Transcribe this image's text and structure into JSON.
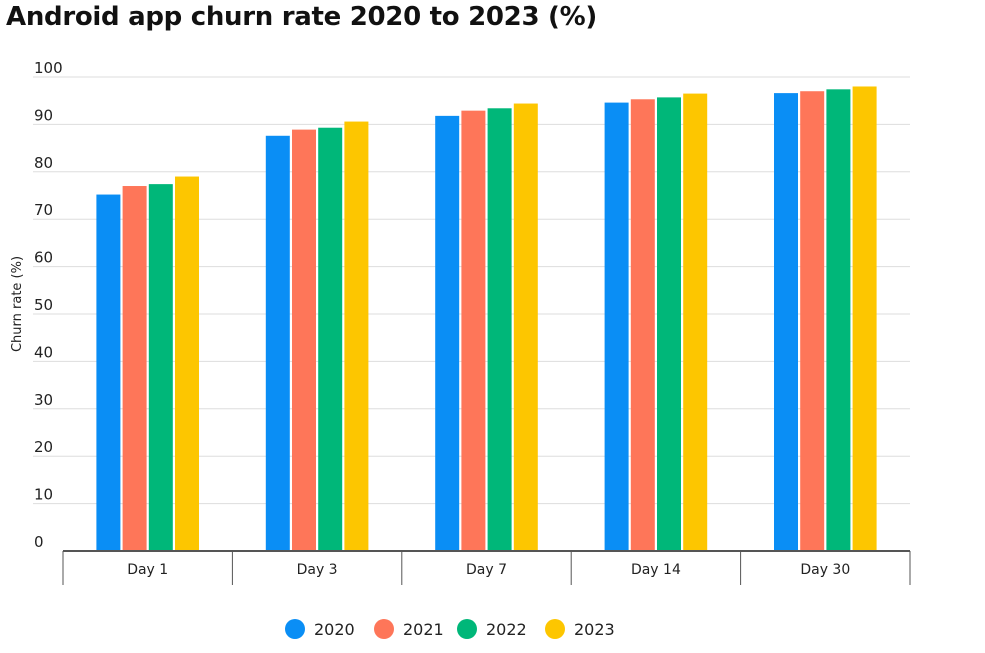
{
  "chart_data": {
    "type": "bar",
    "title": "Android app churn rate 2020 to 2023 (%)",
    "xlabel": "",
    "ylabel": "Churn rate (%)",
    "ylim": [
      0,
      100
    ],
    "yticks": [
      0,
      10,
      20,
      30,
      40,
      50,
      60,
      70,
      80,
      90,
      100
    ],
    "grid": true,
    "legend_position": "bottom",
    "categories": [
      "Day 1",
      "Day 3",
      "Day 7",
      "Day 14",
      "Day 30"
    ],
    "series": [
      {
        "name": "2020",
        "color": "#0a8ef5",
        "values": [
          75.2,
          87.6,
          91.8,
          94.6,
          96.6
        ]
      },
      {
        "name": "2021",
        "color": "#fe7659",
        "values": [
          77.0,
          88.9,
          92.9,
          95.3,
          97.0
        ]
      },
      {
        "name": "2022",
        "color": "#00b779",
        "values": [
          77.4,
          89.3,
          93.4,
          95.7,
          97.4
        ]
      },
      {
        "name": "2023",
        "color": "#fdc600",
        "values": [
          79.0,
          90.6,
          94.4,
          96.5,
          98.0
        ]
      }
    ]
  }
}
